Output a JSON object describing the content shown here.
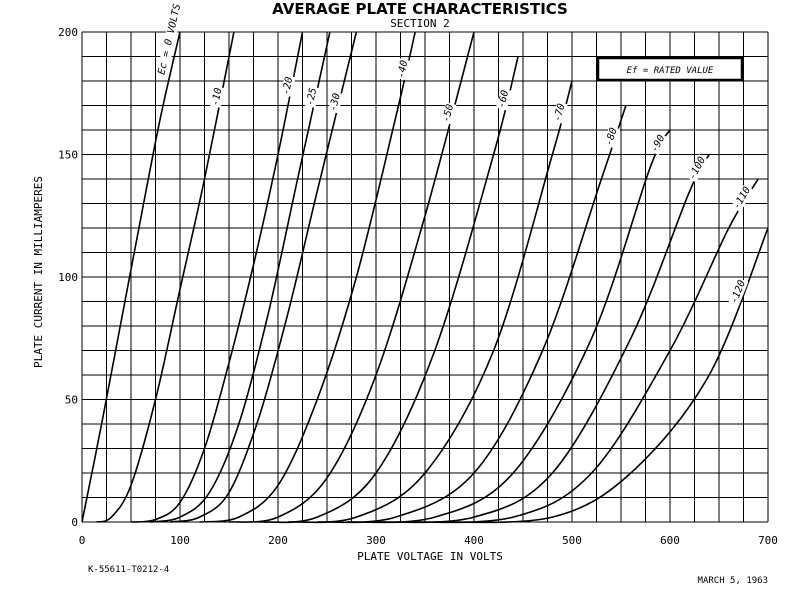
{
  "chart_data": {
    "type": "line",
    "title": "AVERAGE PLATE CHARACTERISTICS",
    "subtitle": "SECTION 2",
    "xlabel": "PLATE VOLTAGE IN VOLTS",
    "ylabel": "PLATE CURRENT IN MILLIAMPERES",
    "xlim": [
      0,
      700
    ],
    "ylim": [
      0,
      200
    ],
    "x_ticks": [
      "0",
      "100",
      "200",
      "300",
      "400",
      "500",
      "600",
      "700"
    ],
    "y_ticks": [
      "0",
      "50",
      "100",
      "150",
      "200"
    ],
    "grid": true,
    "box_label": "Ef = RATED VALUE",
    "series": [
      {
        "name": "Ec = 0 VOLTS",
        "label": "Ec = 0 VOLTS",
        "x": [
          0,
          20,
          40,
          60,
          80,
          100
        ],
        "y": [
          0,
          40,
          82,
          124,
          165,
          200
        ]
      },
      {
        "name": "-10",
        "label": "-10",
        "x": [
          15,
          30,
          50,
          75,
          100,
          125,
          155
        ],
        "y": [
          0,
          2,
          15,
          50,
          95,
          140,
          200
        ]
      },
      {
        "name": "-20",
        "label": "-20",
        "x": [
          50,
          75,
          100,
          125,
          150,
          175,
          200,
          225
        ],
        "y": [
          0,
          1,
          8,
          30,
          65,
          105,
          150,
          200
        ]
      },
      {
        "name": "-25",
        "label": "-25",
        "x": [
          70,
          100,
          130,
          160,
          190,
          220,
          253
        ],
        "y": [
          0,
          2,
          12,
          40,
          85,
          140,
          200
        ]
      },
      {
        "name": "-30",
        "label": "-30",
        "x": [
          90,
          120,
          150,
          180,
          210,
          240,
          280
        ],
        "y": [
          0,
          2,
          12,
          42,
          85,
          135,
          200
        ]
      },
      {
        "name": "-40",
        "label": "-40",
        "x": [
          120,
          160,
          200,
          240,
          280,
          320,
          340
        ],
        "y": [
          0,
          2,
          15,
          50,
          100,
          165,
          200
        ]
      },
      {
        "name": "-50",
        "label": "-50",
        "x": [
          150,
          200,
          250,
          300,
          350,
          400
        ],
        "y": [
          0,
          2,
          18,
          60,
          125,
          200
        ]
      },
      {
        "name": "-60",
        "label": "-60",
        "x": [
          180,
          240,
          300,
          360,
          420,
          445
        ],
        "y": [
          0,
          2,
          20,
          70,
          150,
          190
        ]
      },
      {
        "name": "-70",
        "label": "-70",
        "x": [
          210,
          280,
          350,
          420,
          480,
          500
        ],
        "y": [
          0,
          2,
          20,
          70,
          150,
          180
        ]
      },
      {
        "name": "-80",
        "label": "-80",
        "x": [
          240,
          320,
          400,
          470,
          530,
          555
        ],
        "y": [
          0,
          2,
          20,
          70,
          140,
          170
        ]
      },
      {
        "name": "-90",
        "label": "-90",
        "x": [
          270,
          360,
          440,
          520,
          580,
          600
        ],
        "y": [
          0,
          2,
          20,
          75,
          145,
          160
        ]
      },
      {
        "name": "-100",
        "label": "-100",
        "x": [
          300,
          400,
          480,
          560,
          620,
          640
        ],
        "y": [
          0,
          2,
          20,
          75,
          135,
          150
        ]
      },
      {
        "name": "-110",
        "label": "-110",
        "x": [
          330,
          440,
          520,
          600,
          660,
          690
        ],
        "y": [
          0,
          2,
          20,
          70,
          120,
          140
        ]
      },
      {
        "name": "-120",
        "label": "-120",
        "x": [
          360,
          480,
          560,
          640,
          700
        ],
        "y": [
          0,
          2,
          20,
          60,
          120
        ]
      }
    ]
  },
  "footer": {
    "left": "K-55611-T0212-4",
    "right": "MARCH 5, 1963"
  }
}
